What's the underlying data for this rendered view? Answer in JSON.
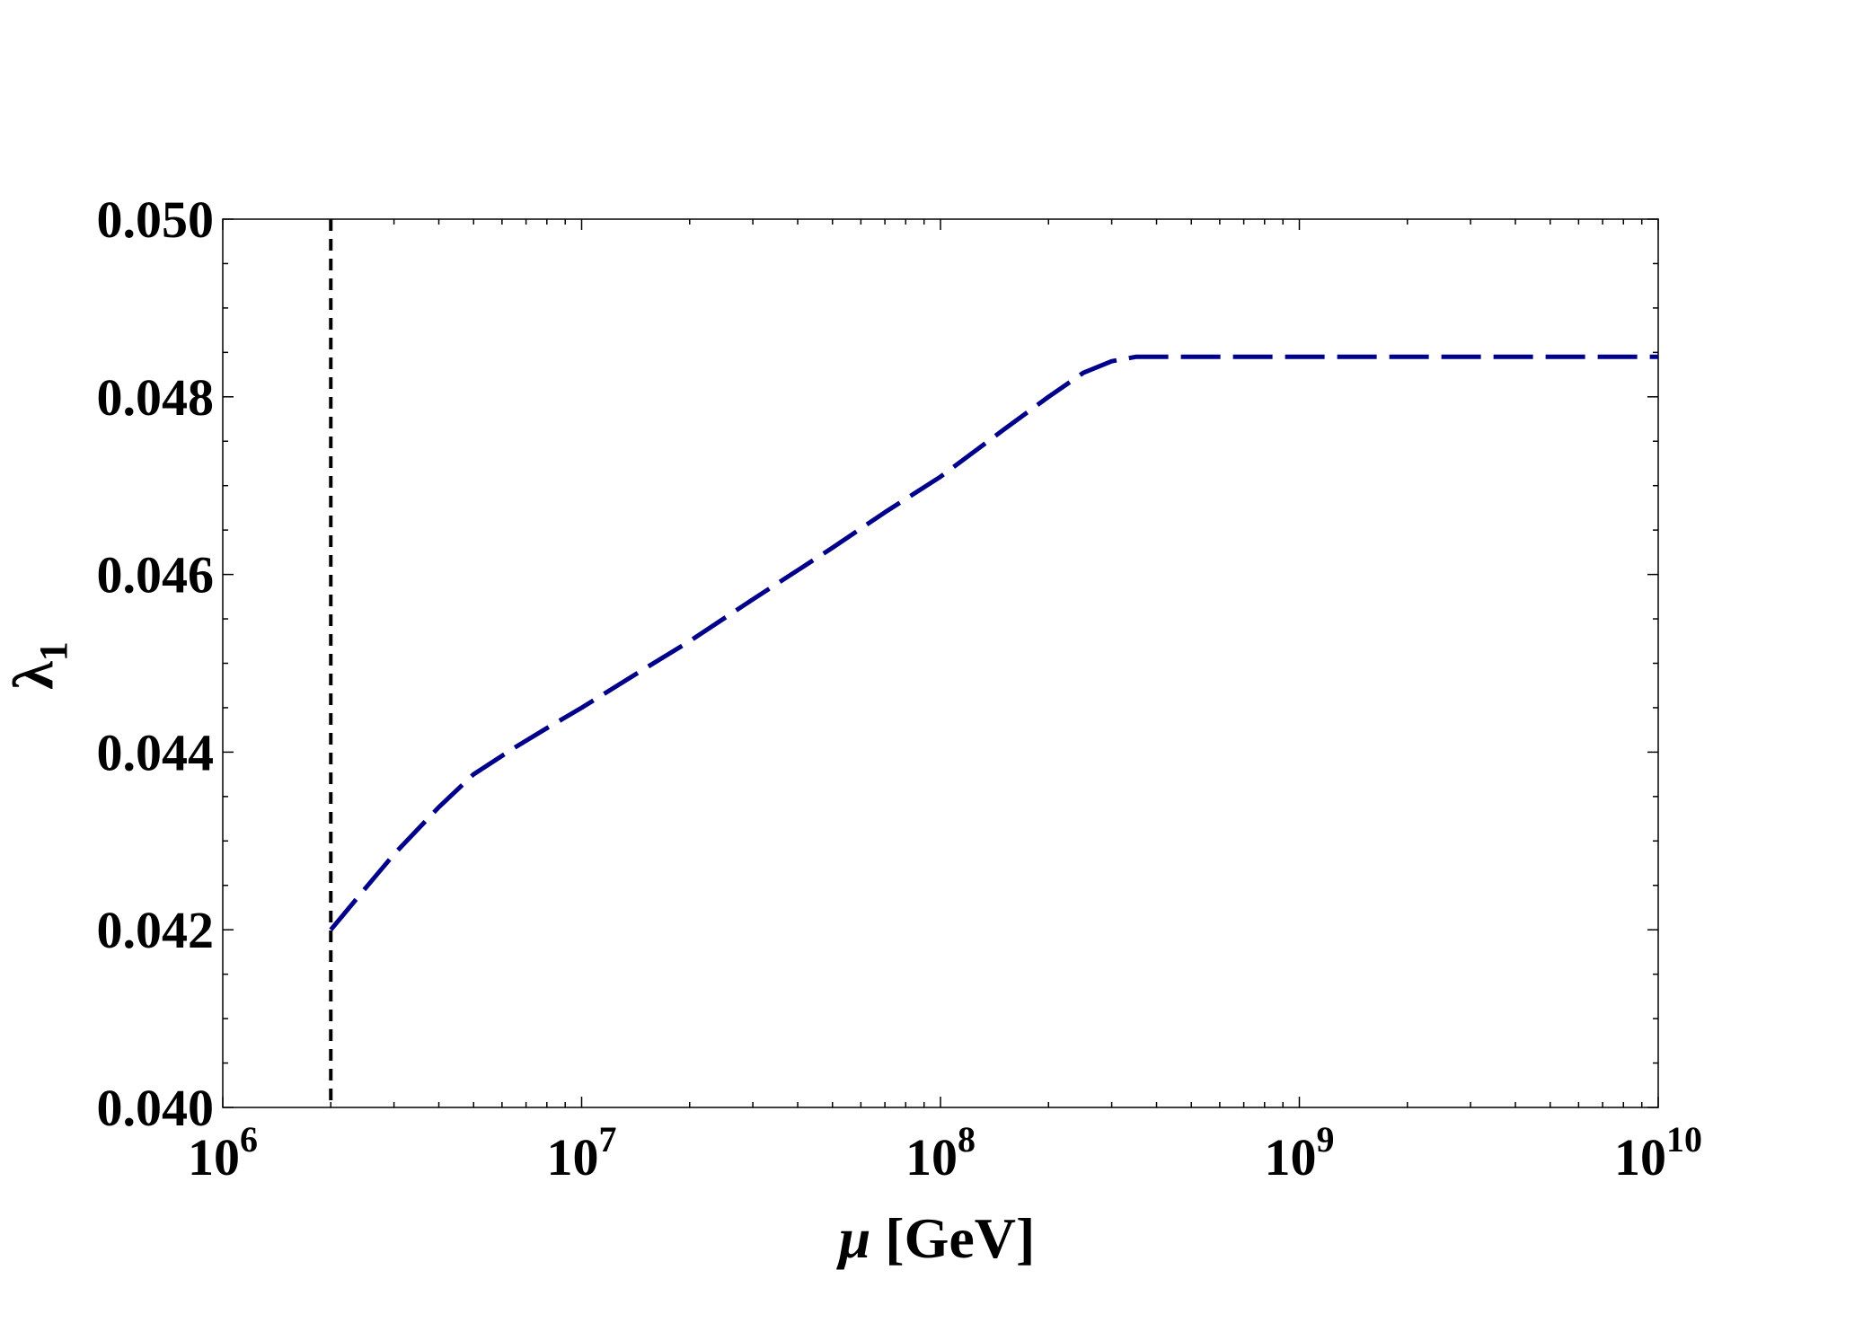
{
  "chart_data": {
    "type": "line",
    "title": "",
    "xlabel": "μ [GeV]",
    "xlabel_symbol": "μ",
    "xlabel_unit": "[GeV]",
    "ylabel": "λ1",
    "ylabel_symbol": "λ",
    "ylabel_subscript": "1",
    "xscale": "log",
    "xlim": [
      1000000,
      10000000000
    ],
    "ylim": [
      0.04,
      0.05
    ],
    "grid": false,
    "frame": true,
    "x_ticks": [
      {
        "value": 1000000,
        "base": "10",
        "exp": "6"
      },
      {
        "value": 10000000,
        "base": "10",
        "exp": "7"
      },
      {
        "value": 100000000,
        "base": "10",
        "exp": "8"
      },
      {
        "value": 1000000000,
        "base": "10",
        "exp": "9"
      },
      {
        "value": 10000000000,
        "base": "10",
        "exp": "10"
      }
    ],
    "y_ticks": [
      {
        "value": 0.04,
        "label": "0.040"
      },
      {
        "value": 0.042,
        "label": "0.042"
      },
      {
        "value": 0.044,
        "label": "0.044"
      },
      {
        "value": 0.046,
        "label": "0.046"
      },
      {
        "value": 0.048,
        "label": "0.048"
      },
      {
        "value": 0.05,
        "label": "0.050"
      }
    ],
    "y_minor_step": 0.0005,
    "series": [
      {
        "color": "#00008B",
        "style": "long-dashed",
        "x": [
          2000000,
          2500000,
          3000000,
          4000000,
          5000000,
          6500000,
          8000000,
          10000000,
          15000000,
          20000000,
          30000000,
          50000000,
          70000000,
          100000000,
          150000000,
          200000000,
          250000000,
          300000000,
          350000000,
          400000000,
          1000000000,
          10000000000
        ],
        "y": [
          0.042,
          0.04247,
          0.04285,
          0.04338,
          0.04375,
          0.04405,
          0.04427,
          0.0445,
          0.04494,
          0.04525,
          0.04572,
          0.0463,
          0.0467,
          0.0471,
          0.04763,
          0.048,
          0.04827,
          0.0484,
          0.04845,
          0.04845,
          0.04845,
          0.04845
        ]
      }
    ],
    "reference_lines": [
      {
        "orientation": "vertical",
        "x": 2000000,
        "color": "#000000",
        "style": "dashed"
      }
    ]
  }
}
